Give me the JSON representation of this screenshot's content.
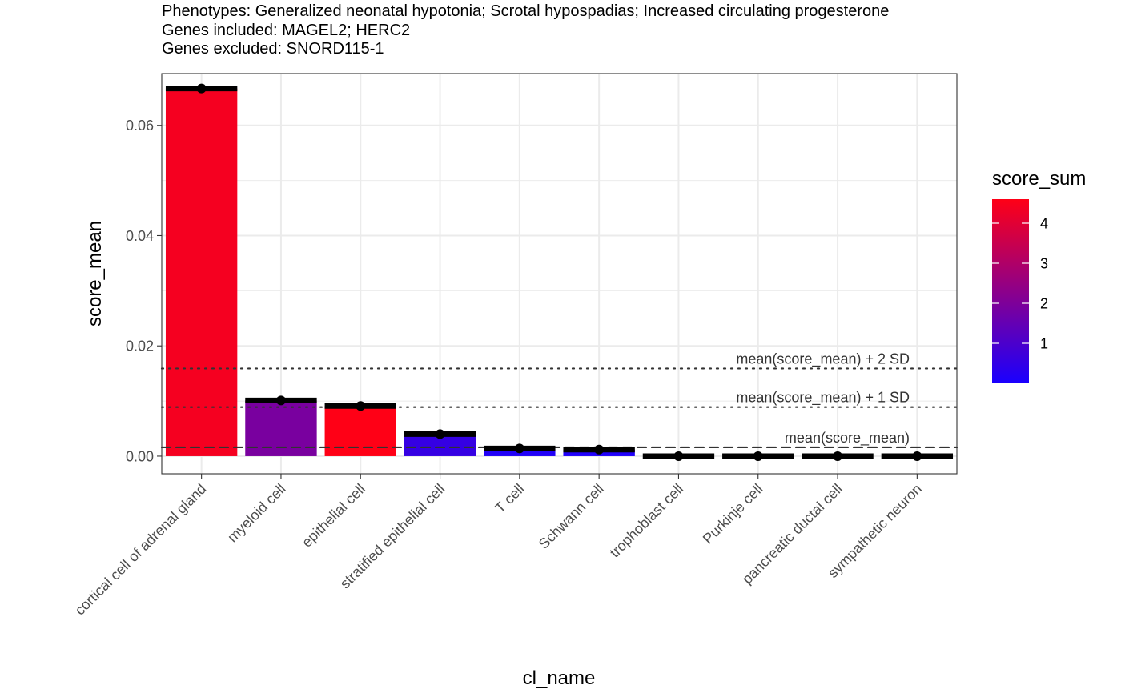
{
  "header": {
    "subtitle_lines": [
      "Phenotypes: Generalized neonatal hypotonia; Scrotal hypospadias; Increased circulating progesterone",
      "Genes included: MAGEL2; HERC2",
      "Genes excluded: SNORD115-1"
    ]
  },
  "chart_data": {
    "type": "bar",
    "title": "",
    "xlabel": "cl_name",
    "ylabel": "score_mean",
    "ylim": [
      -0.0032,
      0.0694
    ],
    "y_ticks": [
      0.0,
      0.02,
      0.04,
      0.06
    ],
    "y_tick_labels": [
      "0.00",
      "0.02",
      "0.04",
      "0.06"
    ],
    "categories": [
      "cortical cell of adrenal gland",
      "myeloid cell",
      "epithelial cell",
      "stratified epithelial cell",
      "T cell",
      "Schwann cell",
      "trophoblast cell",
      "Purkinje cell",
      "pancreatic ductal cell",
      "sympathetic neuron"
    ],
    "values": [
      0.0667,
      0.0101,
      0.0091,
      0.004,
      0.0014,
      0.0012,
      0.0,
      0.0,
      0.0,
      0.0
    ],
    "score_sum": [
      4.4,
      1.9,
      4.6,
      0.55,
      0.15,
      0.12,
      0.0,
      0.0,
      0.0,
      0.0
    ],
    "reference_lines": [
      {
        "label": "mean(score_mean)",
        "value": 0.0016,
        "style": "dashed"
      },
      {
        "label": "mean(score_mean) + 1 SD",
        "value": 0.0089,
        "style": "dotted"
      },
      {
        "label": "mean(score_mean) + 2 SD",
        "value": 0.0159,
        "style": "dotted"
      }
    ],
    "legend": {
      "title": "score_sum",
      "position": "right",
      "range": [
        0.0,
        4.6
      ],
      "ticks": [
        1,
        2,
        3,
        4
      ],
      "tick_labels": [
        "1",
        "2",
        "3",
        "4"
      ],
      "low_color": "#1a00ff",
      "high_color": "#ff0016"
    },
    "grid": true,
    "colors": {
      "point": "#000000",
      "errorbar": "#000000",
      "grid": "#ebebeb",
      "panel_border": "#333333"
    }
  }
}
